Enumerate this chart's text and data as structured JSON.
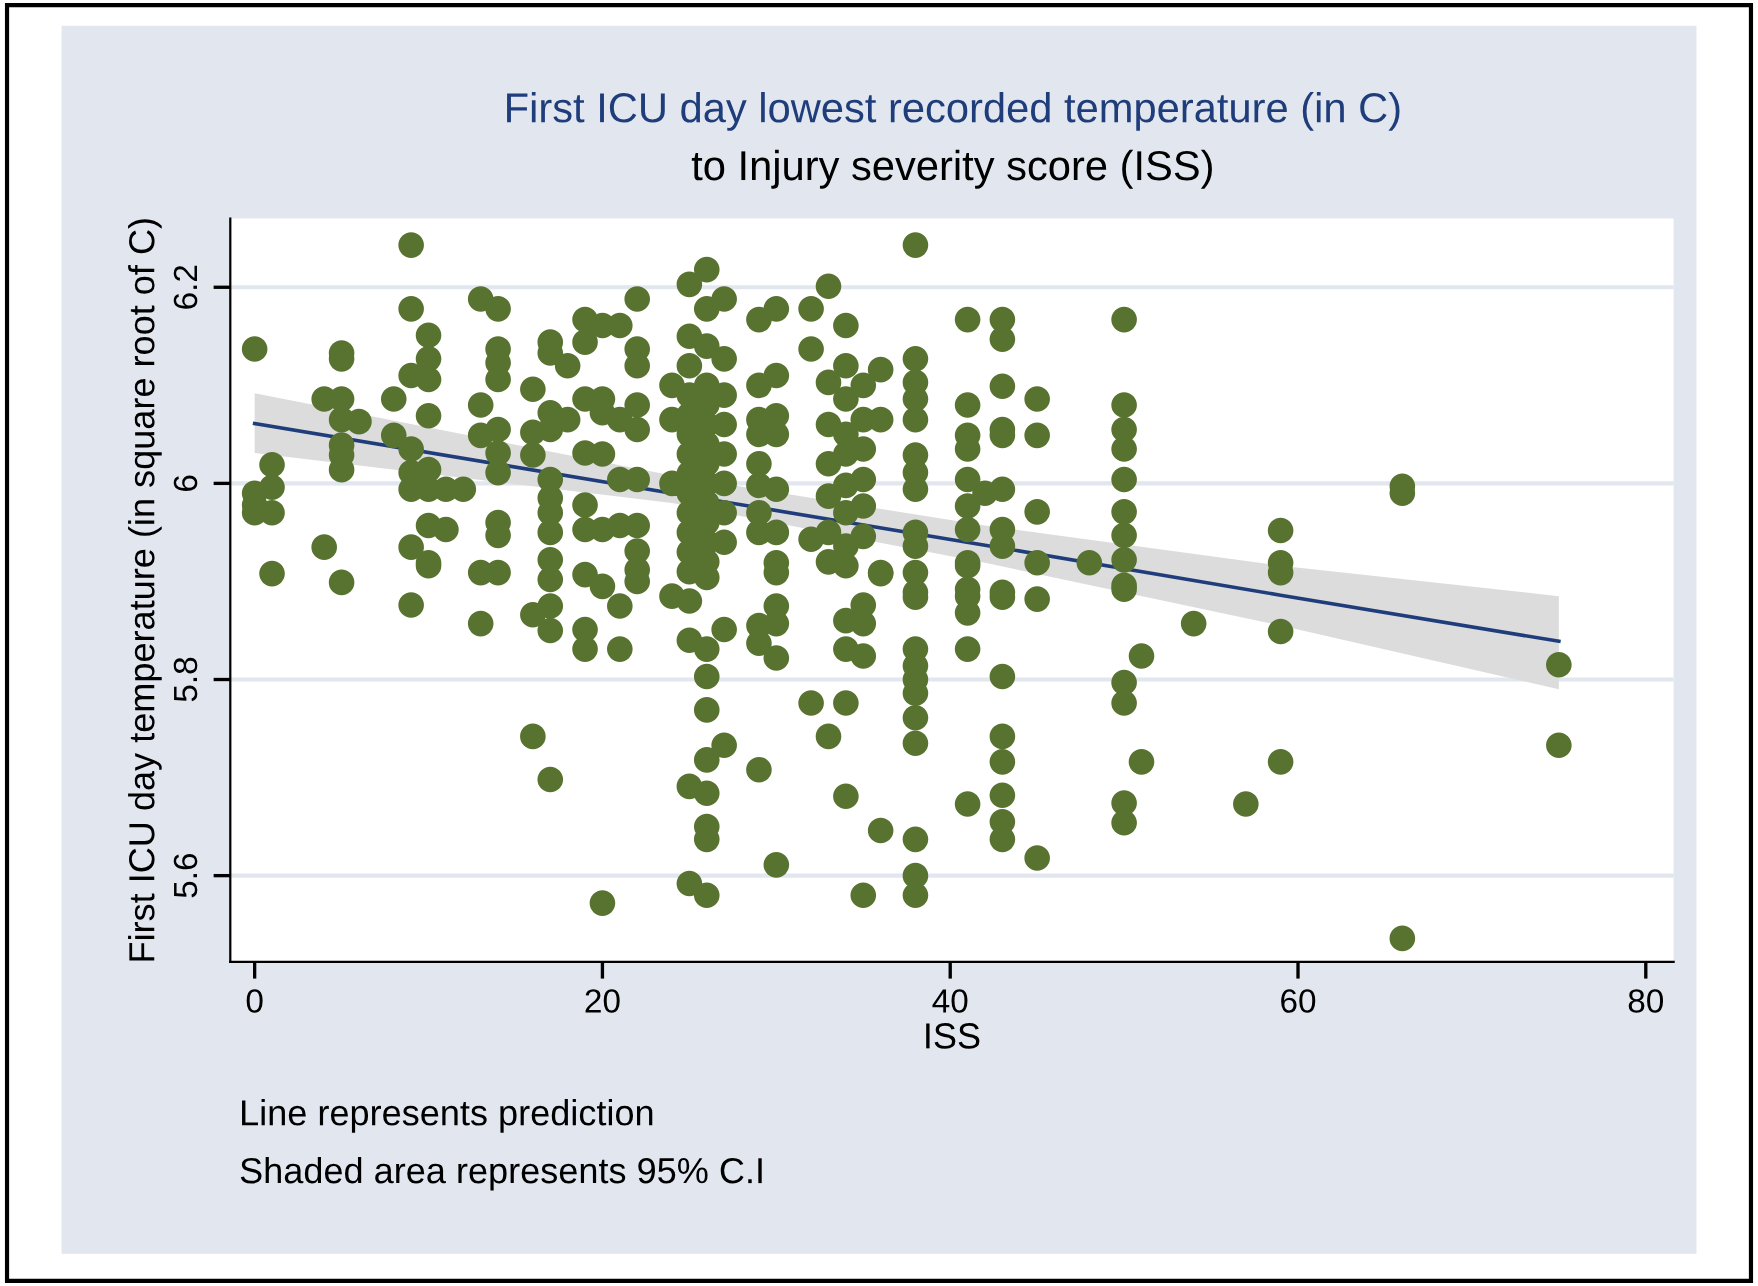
{
  "chart_data": {
    "type": "scatter",
    "title": "First ICU day lowest recorded temperature (in C)",
    "subtitle": "to Injury severity score (ISS)",
    "xlabel": "ISS",
    "ylabel": "First ICU day temperature (in square root of C)",
    "xlim": [
      -1.4,
      81.6
    ],
    "ylim": [
      5.512,
      6.27
    ],
    "xticks": [
      0,
      20,
      40,
      60,
      80
    ],
    "yticks": [
      5.6,
      5.8,
      6,
      6.2
    ],
    "grid": "y",
    "legend": false,
    "annotations": [
      "Line represents prediction",
      "Shaded area represents 95% C.I"
    ],
    "series": [
      {
        "color": "#587330",
        "marker": "circle",
        "x": [
          0,
          0,
          0,
          0,
          1,
          1,
          1,
          1,
          4,
          5,
          5,
          5,
          5,
          6,
          5,
          5,
          5,
          4,
          5,
          9,
          9,
          10,
          10,
          9,
          10,
          8,
          10,
          8,
          9,
          10,
          9,
          9,
          10,
          11,
          12,
          10,
          11,
          9,
          10,
          9,
          10,
          13,
          14,
          14,
          14,
          14,
          13,
          14,
          13,
          14,
          14,
          14,
          14,
          13,
          14,
          13,
          16,
          16,
          16,
          16,
          16,
          17,
          17,
          17,
          17,
          17,
          17,
          17,
          17,
          17,
          17,
          17,
          17,
          17,
          18,
          18,
          19,
          19,
          19,
          19,
          19,
          19,
          19,
          19,
          19,
          20,
          20,
          20,
          20,
          20,
          20,
          20,
          21,
          21,
          21,
          21,
          21,
          21,
          22,
          22,
          22,
          22,
          22,
          22,
          22,
          22,
          22,
          22,
          24,
          24,
          24,
          24,
          25,
          25,
          25,
          25,
          25,
          25,
          25,
          25,
          25,
          25,
          25,
          25,
          25,
          25,
          25,
          25,
          25,
          26,
          26,
          26,
          26,
          26,
          26,
          26,
          26,
          26,
          26,
          26,
          26,
          26,
          26,
          26,
          26,
          26,
          26,
          26,
          26,
          26,
          26,
          27,
          27,
          27,
          27,
          27,
          27,
          27,
          27,
          27,
          27,
          29,
          29,
          29,
          29,
          29,
          29,
          29,
          29,
          29,
          29,
          29,
          30,
          30,
          30,
          30,
          30,
          30,
          30,
          30,
          30,
          30,
          30,
          30,
          32,
          32,
          32,
          32,
          33,
          33,
          33,
          33,
          33,
          33,
          33,
          33,
          34,
          34,
          34,
          34,
          34,
          34,
          34,
          34,
          34,
          34,
          34,
          34,
          34,
          35,
          35,
          35,
          35,
          35,
          35,
          35,
          35,
          35,
          35,
          36,
          36,
          36,
          36,
          36,
          38,
          38,
          38,
          38,
          38,
          38,
          38,
          38,
          38,
          38,
          38,
          38,
          38,
          38,
          38,
          38,
          38,
          38,
          38,
          38,
          38,
          38,
          41,
          41,
          41,
          41,
          41,
          41,
          41,
          41,
          41,
          41,
          41,
          41,
          41,
          41,
          42,
          43,
          43,
          43,
          43,
          43,
          43,
          43,
          43,
          43,
          43,
          43,
          43,
          43,
          43,
          43,
          43,
          45,
          45,
          45,
          45,
          45,
          45,
          48,
          50,
          50,
          50,
          50,
          50,
          50,
          50,
          50,
          50,
          50,
          50,
          50,
          50,
          50,
          51,
          51,
          54,
          57,
          59,
          59,
          59,
          59,
          59,
          66,
          66,
          66,
          75,
          75
        ],
        "values": [
          6.137,
          5.99,
          5.978,
          5.97,
          6.019,
          5.996,
          5.908,
          5.97,
          6.086,
          6.086,
          6.133,
          6.127,
          6.065,
          6.063,
          6.039,
          6.029,
          6.014,
          5.935,
          5.899,
          6.243,
          6.178,
          6.151,
          6.127,
          6.11,
          6.106,
          6.086,
          6.069,
          6.049,
          6.035,
          6.014,
          6.011,
          5.994,
          5.994,
          5.994,
          5.994,
          5.957,
          5.953,
          5.935,
          5.919,
          5.876,
          5.916,
          6.188,
          6.178,
          6.137,
          6.123,
          6.106,
          6.08,
          6.055,
          6.049,
          6.031,
          6.011,
          5.96,
          5.947,
          5.909,
          5.909,
          5.857,
          6.096,
          6.052,
          6.029,
          5.866,
          5.742,
          6.144,
          6.133,
          6.072,
          6.055,
          6.004,
          5.985,
          5.97,
          5.95,
          5.922,
          5.902,
          5.875,
          5.85,
          5.698,
          6.12,
          6.065,
          6.167,
          6.144,
          6.086,
          6.031,
          5.978,
          5.953,
          5.907,
          5.851,
          5.831,
          6.161,
          6.086,
          6.072,
          5.953,
          5.895,
          5.572,
          6.03,
          6.161,
          6.065,
          6.004,
          5.957,
          5.875,
          5.831,
          6.188,
          6.137,
          6.12,
          6.08,
          6.055,
          6.004,
          5.957,
          5.931,
          5.9,
          5.912,
          6.1,
          6.065,
          6,
          5.885,
          6.203,
          6.15,
          6.12,
          6.09,
          6.07,
          6.05,
          6.03,
          6.01,
          5.99,
          5.97,
          5.95,
          5.93,
          5.91,
          5.88,
          5.84,
          5.691,
          5.592,
          6.218,
          6.178,
          6.14,
          6.1,
          6.08,
          6.06,
          6.04,
          6.02,
          6,
          5.98,
          5.96,
          5.94,
          5.92,
          5.904,
          5.831,
          5.803,
          5.769,
          5.718,
          5.684,
          5.65,
          5.637,
          5.58,
          6.188,
          6.127,
          6.09,
          6.06,
          6.03,
          6,
          5.97,
          5.94,
          5.851,
          5.733,
          6.167,
          6.1,
          6.065,
          6.05,
          6.02,
          5.998,
          5.97,
          5.95,
          5.855,
          5.837,
          5.708,
          6.178,
          6.11,
          6.069,
          6.05,
          5.994,
          5.95,
          5.919,
          5.909,
          5.875,
          5.857,
          5.822,
          5.611,
          6.178,
          6.137,
          5.943,
          5.776,
          6.201,
          6.103,
          6.06,
          6.02,
          5.987,
          5.95,
          5.92,
          5.742,
          6.161,
          6.12,
          6.086,
          6.05,
          6.03,
          5.998,
          5.97,
          5.936,
          5.916,
          5.86,
          5.831,
          5.776,
          5.681,
          6.1,
          6.065,
          6.035,
          6.004,
          5.977,
          5.946,
          5.876,
          5.857,
          5.824,
          5.58,
          6.116,
          6.065,
          5.909,
          5.908,
          5.646,
          6.243,
          6.127,
          6.103,
          6.086,
          6.065,
          6.029,
          6.011,
          5.994,
          5.95,
          5.936,
          5.909,
          5.889,
          5.884,
          5.831,
          5.814,
          5.8,
          5.786,
          5.761,
          5.735,
          5.637,
          5.6,
          5.58,
          6.167,
          6.08,
          6.049,
          6.035,
          6.004,
          5.977,
          5.953,
          5.919,
          5.892,
          5.916,
          5.885,
          5.868,
          5.831,
          5.673,
          5.99,
          6.167,
          6.147,
          6.099,
          6.055,
          6.049,
          5.994,
          5.953,
          5.936,
          5.889,
          5.884,
          5.803,
          5.742,
          5.716,
          5.682,
          5.637,
          5.655,
          6.086,
          6.049,
          5.971,
          5.919,
          5.882,
          5.618,
          5.919,
          6.167,
          6.08,
          6.055,
          6.035,
          6.004,
          5.971,
          5.947,
          5.922,
          5.896,
          5.892,
          5.797,
          5.776,
          5.674,
          5.654,
          5.824,
          5.716,
          5.857,
          5.673,
          5.952,
          5.919,
          5.909,
          5.849,
          5.716,
          5.99,
          5.997,
          5.536,
          5.815,
          5.733
        ]
      },
      {
        "type": "line",
        "color": "#1f3d7a",
        "marker": "none",
        "x": [
          0,
          24,
          42,
          59,
          75
        ],
        "values": [
          6.061,
          5.99,
          5.937,
          5.886,
          5.839
        ],
        "lower": [
          6.031,
          5.98,
          5.919,
          5.855,
          5.79
        ],
        "upper": [
          6.092,
          6.008,
          5.957,
          5.916,
          5.885
        ]
      }
    ]
  }
}
